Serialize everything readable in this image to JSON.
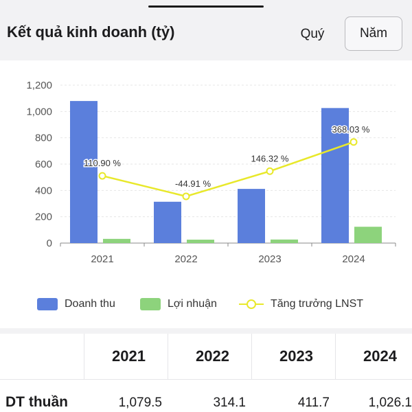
{
  "header": {
    "title": "Kết quả kinh doanh (tỷ)",
    "tab_quarter": "Quý",
    "tab_year": "Năm"
  },
  "chart_data": {
    "type": "bar",
    "categories": [
      "2021",
      "2022",
      "2023",
      "2024"
    ],
    "series": [
      {
        "name": "Doanh thu",
        "type": "bar",
        "color": "#5b7fdc",
        "values": [
          1079.5,
          314.1,
          411.7,
          1026.1
        ]
      },
      {
        "name": "Lợi nhuận",
        "type": "bar",
        "color": "#8dd37c",
        "values": [
          32,
          26,
          27,
          124
        ]
      },
      {
        "name": "Tăng trưởng LNST",
        "type": "line",
        "color": "#e8e82a",
        "values": [
          110.9,
          -44.91,
          146.32,
          368.03
        ],
        "labels": [
          "110.90 %",
          "-44.91 %",
          "146.32 %",
          "368.03 %"
        ]
      }
    ],
    "yticks": [
      "0",
      "200",
      "400",
      "600",
      "800",
      "1,000",
      "1,200"
    ],
    "ylim": [
      0,
      1200
    ],
    "grid": true,
    "legend": "bottom"
  },
  "table": {
    "years": [
      "2021",
      "2022",
      "2023",
      "2024"
    ],
    "row_label": "DT thuần",
    "values": [
      "1,079.5",
      "314.1",
      "411.7",
      "1,026.1"
    ]
  }
}
